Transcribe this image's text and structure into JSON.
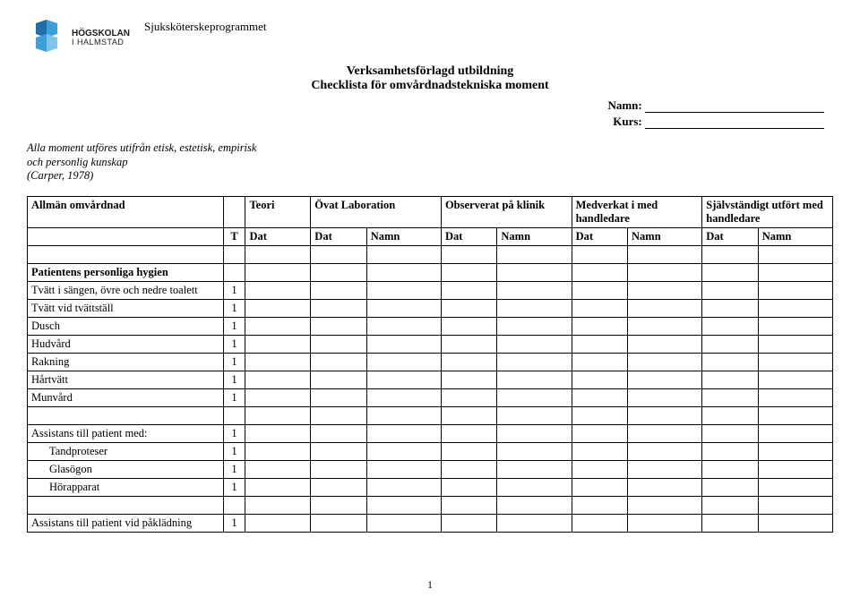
{
  "header": {
    "program": "Sjuksköterskeprogrammet",
    "logo_main": "HÖGSKOLAN",
    "logo_sub": "I HALMSTAD"
  },
  "title": {
    "line1": "Verksamhetsförlagd utbildning",
    "line2": "Checklista för omvårdnadstekniska moment"
  },
  "fields": {
    "namn_label": "Namn:",
    "kurs_label": "Kurs:"
  },
  "note": {
    "line1": "Alla moment utföres utifrån etisk, estetisk, empirisk",
    "line2": "och personlig kunskap",
    "line3": "(Carper, 1978)"
  },
  "table_head": {
    "section": "Allmän omvårdnad",
    "t": "T",
    "teori": "Teori",
    "dat": "Dat",
    "ovat": "Övat Laboration",
    "obs": "Observerat på klinik",
    "medv": "Medverkat i med handledare",
    "sjalv": "Självständigt utfört med handledare",
    "sub_dat": "Dat",
    "sub_namn": "Namn"
  },
  "group1": {
    "title": "Patientens personliga hygien",
    "rows": [
      {
        "label": "Tvätt i sängen, övre och nedre toalett",
        "t": "1"
      },
      {
        "label": "Tvätt vid tvättställ",
        "t": "1"
      },
      {
        "label": "Dusch",
        "t": "1"
      },
      {
        "label": "Hudvård",
        "t": "1"
      },
      {
        "label": "Rakning",
        "t": "1"
      },
      {
        "label": "Hårtvätt",
        "t": "1"
      },
      {
        "label": "Munvård",
        "t": "1"
      }
    ]
  },
  "group2": {
    "title": "Assistans till patient med:",
    "title_t": "1",
    "rows": [
      {
        "label": "Tandproteser",
        "t": "1"
      },
      {
        "label": "Glasögon",
        "t": "1"
      },
      {
        "label": "Hörapparat",
        "t": "1"
      }
    ]
  },
  "group3": {
    "title": "Assistans till patient vid påklädning",
    "title_t": "1"
  },
  "page_number": "1",
  "colors": {
    "logo_blue_1": "#1e6fa8",
    "logo_blue_2": "#3aa0d8",
    "logo_blue_3": "#7fc4e8"
  }
}
